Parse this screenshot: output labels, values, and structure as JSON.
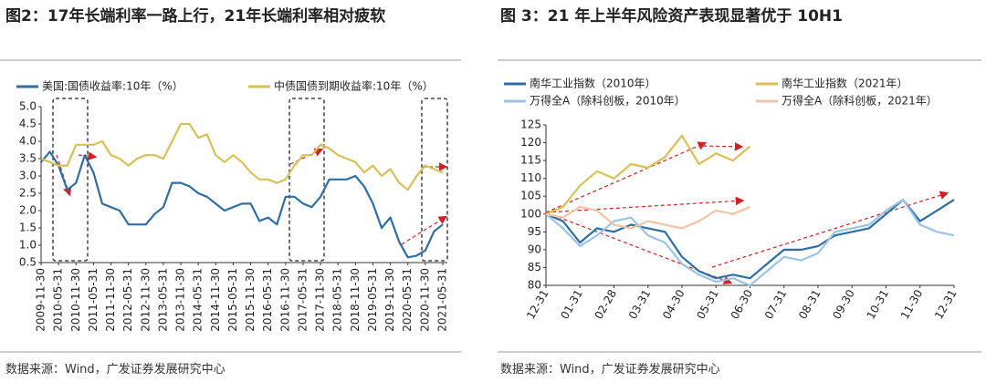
{
  "chart_data": [
    {
      "type": "line",
      "title": "图2：17年长端利率一路上行，21年长端利率相对疲软",
      "source": "数据来源：Wind，广发证券发展研究中心",
      "categories": [
        "2009-11-30",
        null,
        "2010-05-31",
        null,
        "2010-11-30",
        null,
        "2011-05-31",
        null,
        "2011-11-30",
        null,
        "2012-05-31",
        null,
        "2012-11-30",
        null,
        "2013-05-31",
        null,
        "2013-11-30",
        null,
        "2014-05-31",
        null,
        "2014-11-30",
        null,
        "2015-05-31",
        null,
        "2015-11-30",
        null,
        "2016-05-31",
        null,
        "2016-11-30",
        null,
        "2017-05-31",
        null,
        "2017-11-30",
        null,
        "2018-05-31",
        null,
        "2018-11-30",
        null,
        "2019-05-31",
        null,
        "2019-11-30",
        null,
        "2020-05-31",
        null,
        "2020-11-30",
        null,
        "2021-05-31"
      ],
      "series": [
        {
          "name": "美国:国债收益率:10年（%）",
          "color": "#2e6ea6",
          "values": [
            3.4,
            3.7,
            3.3,
            2.6,
            2.8,
            3.6,
            3.1,
            2.2,
            2.1,
            2.0,
            1.6,
            1.6,
            1.6,
            1.9,
            2.1,
            2.8,
            2.8,
            2.7,
            2.5,
            2.4,
            2.2,
            2.0,
            2.1,
            2.2,
            2.2,
            1.7,
            1.8,
            1.6,
            2.4,
            2.4,
            2.2,
            2.1,
            2.4,
            2.9,
            2.9,
            2.9,
            3.0,
            2.7,
            2.2,
            1.5,
            1.8,
            1.1,
            0.65,
            0.7,
            0.85,
            1.4,
            1.6
          ]
        },
        {
          "name": "中债国债到期收益率:10年（%）",
          "color": "#d9c055",
          "values": [
            3.5,
            3.4,
            3.3,
            3.3,
            3.9,
            3.9,
            3.9,
            4.0,
            3.6,
            3.5,
            3.3,
            3.5,
            3.6,
            3.6,
            3.5,
            4.0,
            4.5,
            4.5,
            4.1,
            4.2,
            3.6,
            3.4,
            3.6,
            3.4,
            3.1,
            2.9,
            2.9,
            2.8,
            2.9,
            3.3,
            3.6,
            3.6,
            3.9,
            3.8,
            3.6,
            3.5,
            3.4,
            3.1,
            3.3,
            3.0,
            3.2,
            2.8,
            2.6,
            3.0,
            3.3,
            3.2,
            3.1
          ]
        }
      ],
      "ylim": [
        0.5,
        5.0
      ],
      "yticks": [
        0.5,
        {
          "value": 1,
          "label": "1.0"
        },
        1.5,
        {
          "value": 2,
          "label": "2.0"
        },
        2.5,
        {
          "value": 3,
          "label": "3.0"
        },
        3.5,
        {
          "value": 4,
          "label": "4.0"
        },
        4.5,
        {
          "value": 5,
          "label": "5.0"
        }
      ],
      "grid": false
    },
    {
      "type": "line",
      "title": "图 3：21 年上半年风险资产表现显著优于 10H1",
      "source": "数据来源：Wind，广发证券发展研究中心",
      "categories": [
        "12-31",
        null,
        "01-31",
        null,
        "02-28",
        null,
        "03-31",
        null,
        "04-30",
        null,
        "05-31",
        null,
        "06-30",
        null,
        "07-31",
        null,
        "08-31",
        null,
        "09-30",
        null,
        "10-31",
        null,
        "11-30",
        null,
        "12-31"
      ],
      "series": [
        {
          "name": "南华工业指数（2010年）",
          "color": "#2e6ea6",
          "values": [
            100,
            98,
            92,
            96,
            95,
            97,
            96,
            95,
            88,
            84,
            82,
            83,
            82,
            86,
            90,
            90,
            91,
            94,
            95,
            96,
            100,
            104,
            98,
            101,
            104
          ]
        },
        {
          "name": "南华工业指数（2021年）",
          "color": "#d9c055",
          "values": [
            100,
            102,
            108,
            112,
            110,
            114,
            113,
            116,
            122,
            114,
            117,
            115,
            119,
            null,
            null,
            null,
            null,
            null,
            null,
            null,
            null,
            null,
            null,
            null,
            null
          ]
        },
        {
          "name": "万得全A（除科创板，2010年）",
          "color": "#9dc3e6",
          "values": [
            100,
            96,
            91,
            94,
            98,
            99,
            94,
            92,
            86,
            83,
            81,
            82,
            80,
            84,
            88,
            87,
            89,
            95,
            96,
            97,
            101,
            104,
            97,
            95,
            94
          ]
        },
        {
          "name": "万得全A（除科创板，2021年）",
          "color": "#f4c3a6",
          "values": [
            100,
            99,
            102,
            101,
            97,
            96,
            98,
            97,
            96,
            98,
            101,
            100,
            102,
            null,
            null,
            null,
            null,
            null,
            null,
            null,
            null,
            null,
            null,
            null,
            null
          ]
        }
      ],
      "ylim": [
        80,
        125
      ],
      "yticks": [
        80,
        85,
        90,
        95,
        100,
        105,
        110,
        115,
        120,
        125
      ],
      "grid": false
    }
  ]
}
